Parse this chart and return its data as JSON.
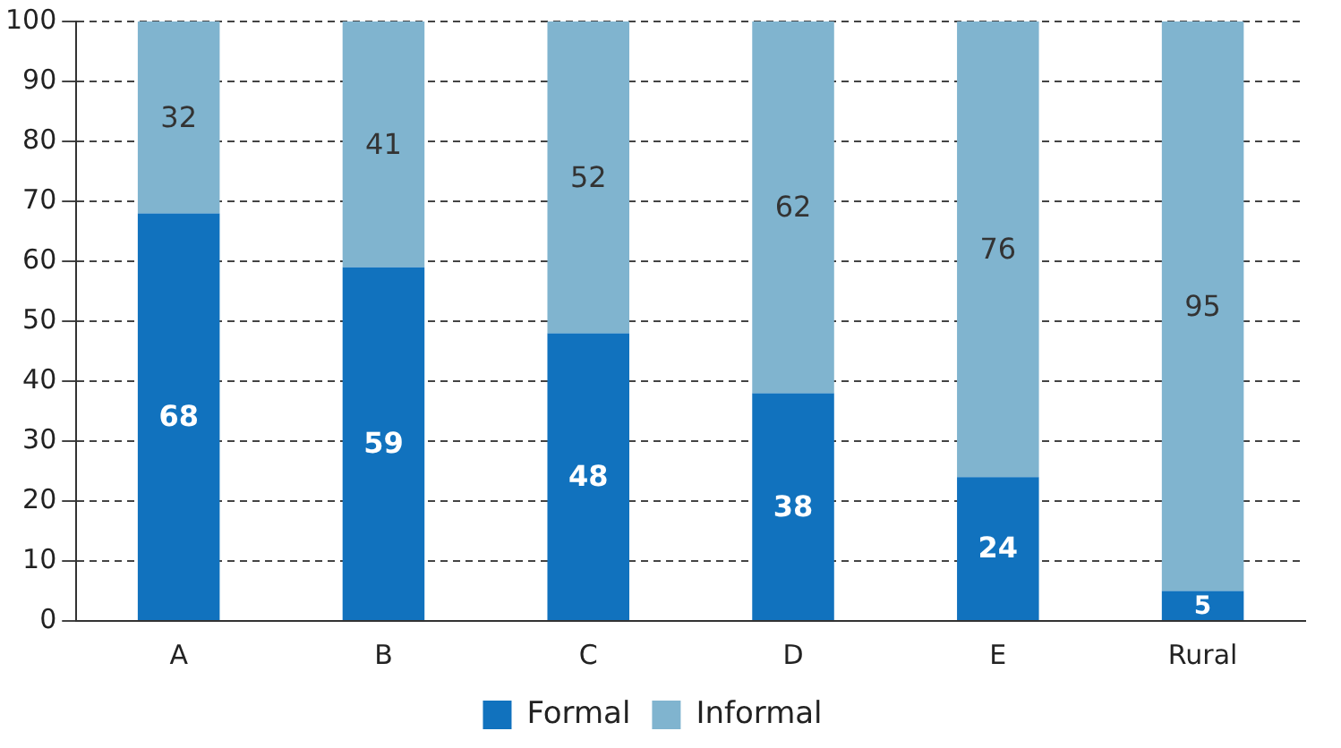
{
  "chart_data": {
    "type": "bar",
    "stacked": true,
    "categories": [
      "A",
      "B",
      "C",
      "D",
      "E",
      "Rural"
    ],
    "series": [
      {
        "name": "Formal",
        "color": "#1172be",
        "values": [
          68,
          59,
          48,
          38,
          24,
          5
        ]
      },
      {
        "name": "Informal",
        "color": "#80b4cf",
        "values": [
          32,
          41,
          52,
          62,
          76,
          95
        ]
      }
    ],
    "ylim": [
      0,
      100
    ],
    "yticks": [
      0,
      10,
      20,
      30,
      40,
      50,
      60,
      70,
      80,
      90,
      100
    ],
    "grid": "y",
    "legend": "bottom",
    "data_labels": true
  }
}
